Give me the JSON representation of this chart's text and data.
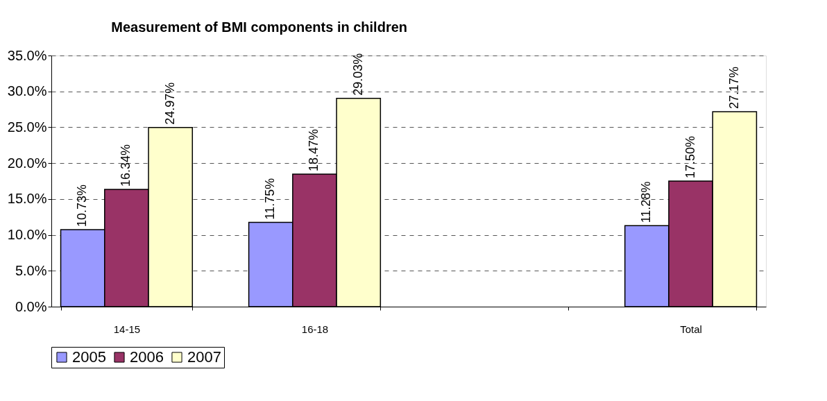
{
  "chart_data": {
    "type": "bar",
    "title": "Measurement of BMI components in children",
    "categories": [
      "14-15",
      "16-18",
      null,
      "Total"
    ],
    "series": [
      {
        "name": "2005",
        "color": "#9999ff",
        "values": [
          10.73,
          11.75,
          null,
          11.28
        ],
        "value_labels": [
          "10.73%",
          "11.75%",
          null,
          "11.28%"
        ]
      },
      {
        "name": "2006",
        "color": "#993366",
        "values": [
          16.34,
          18.47,
          null,
          17.5
        ],
        "value_labels": [
          "16.34%",
          "18.47%",
          null,
          "17.50%"
        ]
      },
      {
        "name": "2007",
        "color": "#ffffcc",
        "values": [
          24.97,
          29.03,
          null,
          27.17
        ],
        "value_labels": [
          "24.97%",
          "29.03%",
          null,
          "27.17%"
        ]
      }
    ],
    "ylim": [
      0,
      35
    ],
    "yticks": [
      {
        "value": 0,
        "label": "0.0%"
      },
      {
        "value": 5,
        "label": "5.0%"
      },
      {
        "value": 10,
        "label": "10.0%"
      },
      {
        "value": 15,
        "label": "15.0%"
      },
      {
        "value": 20,
        "label": "20.0%"
      },
      {
        "value": 25,
        "label": "25.0%"
      },
      {
        "value": 30,
        "label": "30.0%"
      },
      {
        "value": 35,
        "label": "35.0%"
      }
    ],
    "grid": "y",
    "legend": "bottom"
  }
}
